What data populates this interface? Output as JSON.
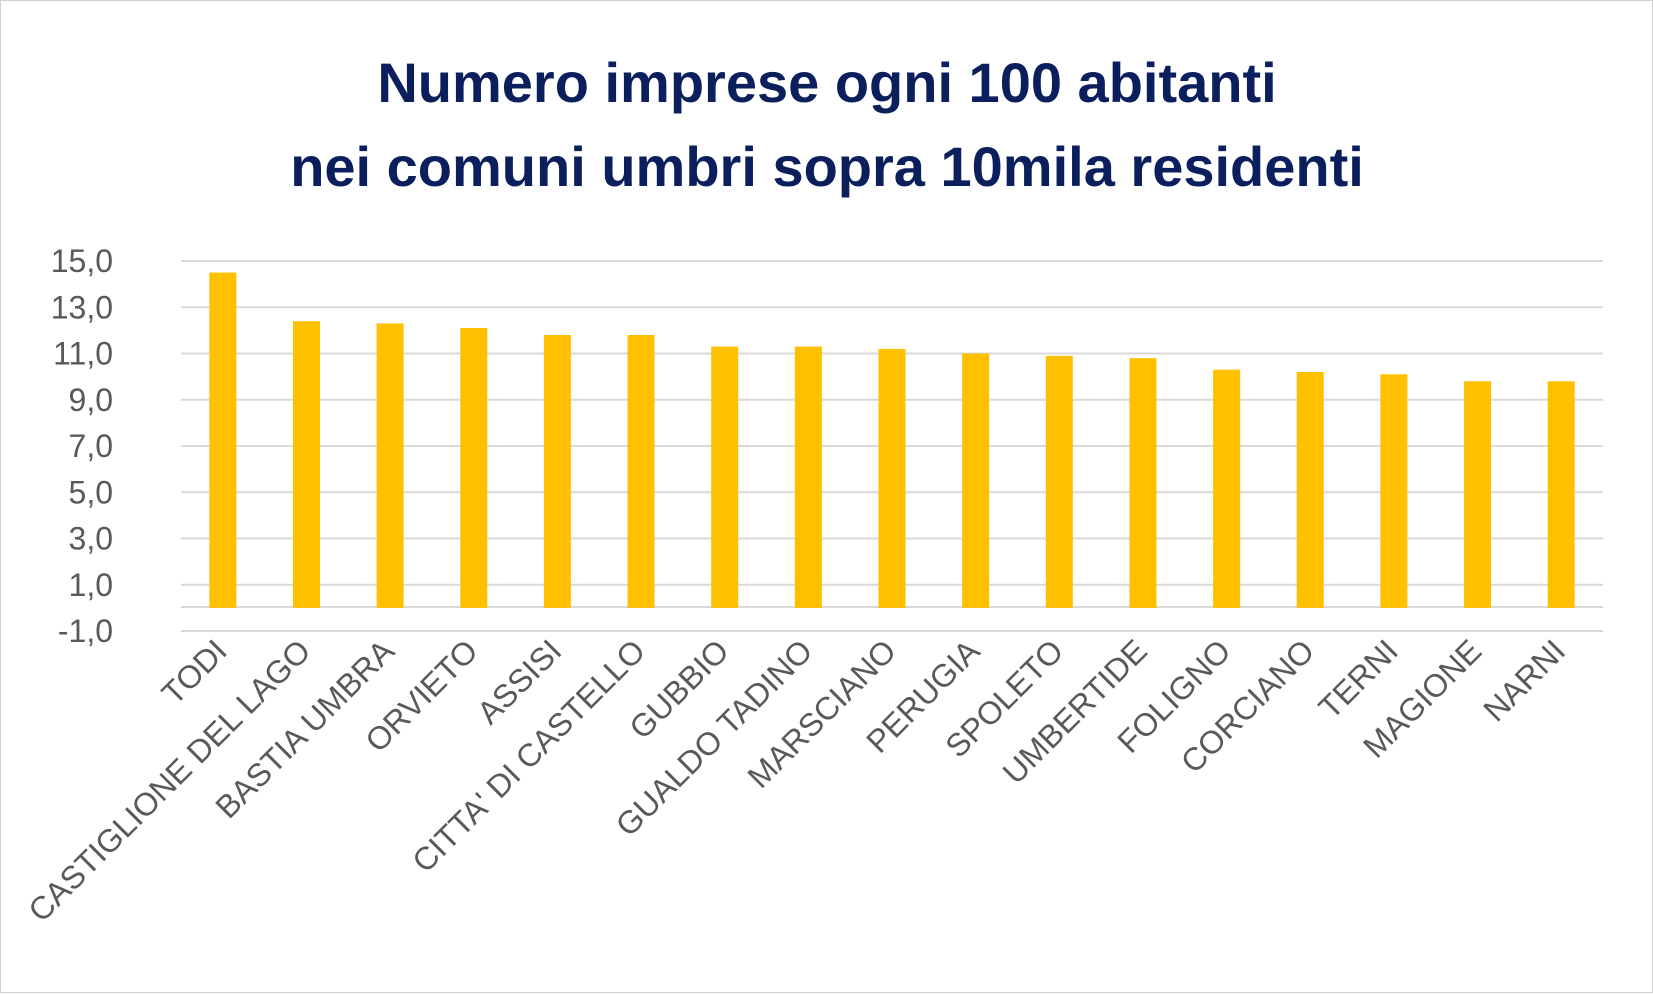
{
  "chart_data": {
    "type": "bar",
    "title_lines": [
      "Numero imprese ogni 100 abitanti",
      "nei comuni umbri sopra 10mila residenti"
    ],
    "categories": [
      "TODI",
      "CASTIGLIONE DEL LAGO",
      "BASTIA UMBRA",
      "ORVIETO",
      "ASSISI",
      "CITTA' DI CASTELLO",
      "GUBBIO",
      "GUALDO TADINO",
      "MARSCIANO",
      "PERUGIA",
      "SPOLETO",
      "UMBERTIDE",
      "FOLIGNO",
      "CORCIANO",
      "TERNI",
      "MAGIONE",
      "NARNI"
    ],
    "values": [
      14.5,
      12.4,
      12.3,
      12.1,
      11.8,
      11.8,
      11.3,
      11.3,
      11.2,
      11.0,
      10.9,
      10.8,
      10.3,
      10.2,
      10.1,
      9.8,
      9.8
    ],
    "ylim": [
      -1,
      15
    ],
    "yticks": [
      -1,
      1,
      3,
      5,
      7,
      9,
      11,
      13,
      15
    ],
    "ytick_labels": [
      "-1,0",
      "1,0",
      "3,0",
      "5,0",
      "7,0",
      "9,0",
      "11,0",
      "13,0",
      "15,0"
    ],
    "xlabel": "",
    "ylabel": "",
    "grid": true,
    "legend": "none",
    "colors": {
      "bar": "#ffc000",
      "title": "#0a1f5c",
      "grid": "#d9d9d9",
      "tick_text": "#595959"
    }
  }
}
